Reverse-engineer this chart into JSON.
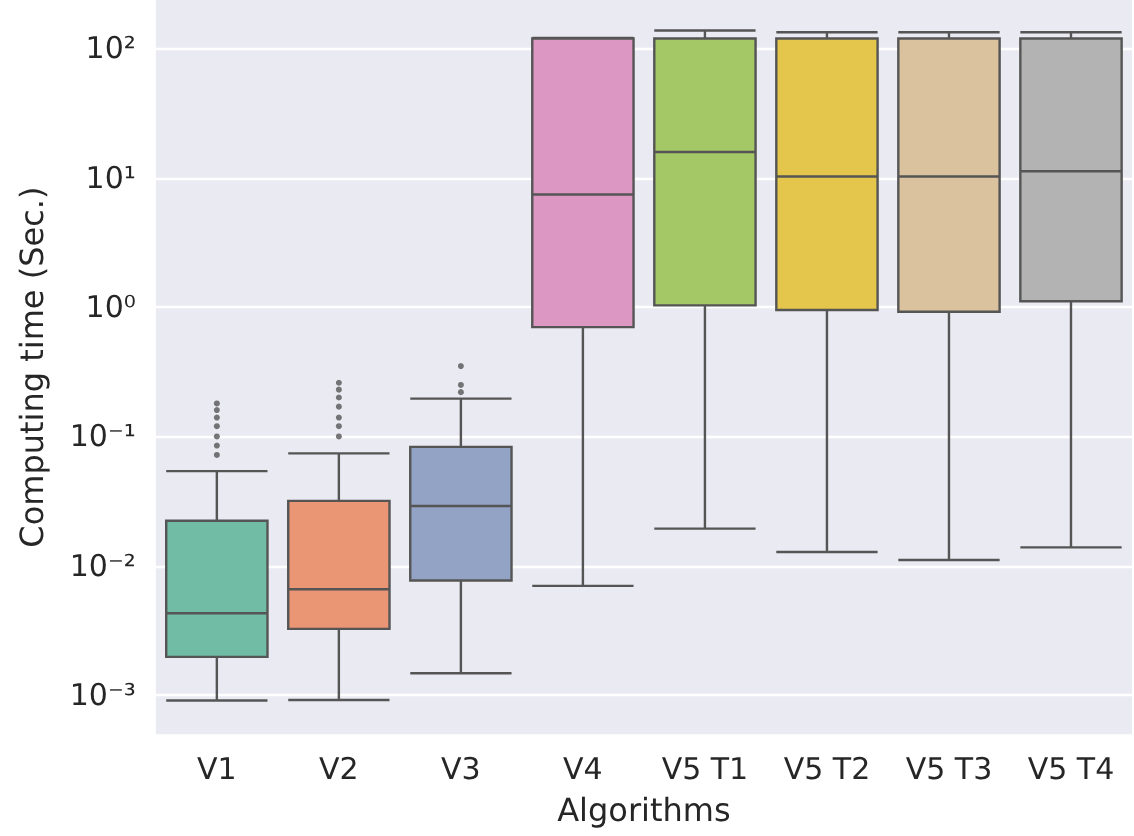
{
  "chart_data": {
    "type": "box",
    "xlabel": "Algorithms",
    "ylabel": "Computing time (Sec.)",
    "categories": [
      "V1",
      "V2",
      "V3",
      "V4",
      "V5 T1",
      "V5 T2",
      "V5 T3",
      "V5 T4"
    ],
    "colors": [
      "#71bca5",
      "#ea9574",
      "#93a3c6",
      "#dc97c2",
      "#a5c866",
      "#e3c64b",
      "#dbc29e",
      "#b3b3b3"
    ],
    "boxes": [
      {
        "low": 0.00091,
        "q1": 0.00198,
        "median": 0.0043,
        "q3": 0.0223,
        "high": 0.054,
        "outliers": [
          0.072,
          0.085,
          0.1,
          0.12,
          0.14,
          0.16,
          0.18
        ]
      },
      {
        "low": 0.00092,
        "q1": 0.00326,
        "median": 0.0066,
        "q3": 0.0318,
        "high": 0.074,
        "outliers": [
          0.1,
          0.12,
          0.14,
          0.17,
          0.2,
          0.23,
          0.26
        ]
      },
      {
        "low": 0.00148,
        "q1": 0.0077,
        "median": 0.029,
        "q3": 0.083,
        "high": 0.196,
        "outliers": [
          0.22,
          0.25,
          0.35
        ]
      },
      {
        "low": 0.007,
        "q1": 0.7,
        "median": 7.4,
        "q3": 119,
        "high": 120
      },
      {
        "low": 0.0194,
        "q1": 1.03,
        "median": 15.8,
        "q3": 119,
        "high": 137
      },
      {
        "low": 0.0128,
        "q1": 0.95,
        "median": 10.2,
        "q3": 119,
        "high": 133
      },
      {
        "low": 0.0111,
        "q1": 0.92,
        "median": 10.2,
        "q3": 119,
        "high": 133
      },
      {
        "low": 0.0139,
        "q1": 1.11,
        "median": 11.2,
        "q3": 119,
        "high": 133
      }
    ],
    "log": "y",
    "ylim": [
      0.0005,
      236
    ],
    "yticks": [
      {
        "value": 0.001,
        "label": "10⁻³"
      },
      {
        "value": 0.01,
        "label": "10⁻²"
      },
      {
        "value": 0.1,
        "label": "10⁻¹"
      },
      {
        "value": 1,
        "label": "10⁰"
      },
      {
        "value": 10,
        "label": "10¹"
      },
      {
        "value": 100,
        "label": "10²"
      }
    ],
    "grid": "y"
  }
}
